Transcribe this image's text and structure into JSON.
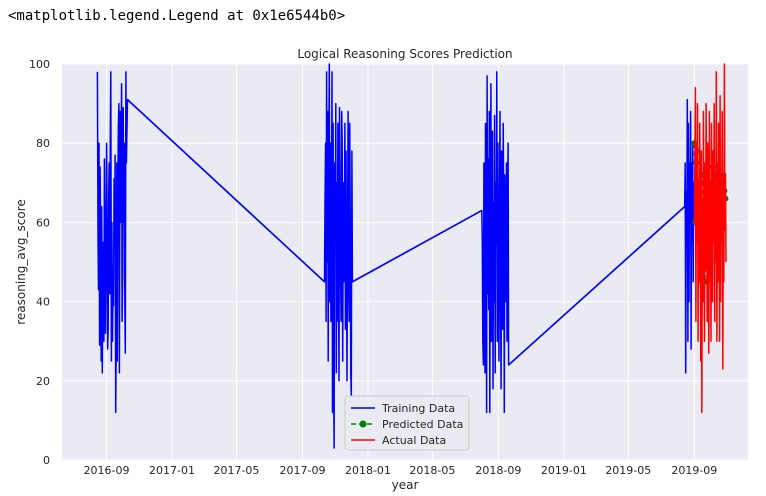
{
  "output_repr": "<matplotlib.legend.Legend at 0x1e6544b0>",
  "chart_data": {
    "type": "line",
    "title": "Logical Reasoning Scores Prediction",
    "xlabel": "year",
    "ylabel": "reasoning_avg_score",
    "ylim": [
      0,
      100
    ],
    "yticks": [
      0,
      20,
      40,
      60,
      80,
      100
    ],
    "xlim": [
      "2016-06-10",
      "2019-12-10"
    ],
    "xticks": [
      "2016-09",
      "2017-01",
      "2017-05",
      "2017-09",
      "2018-01",
      "2018-05",
      "2018-09",
      "2019-01",
      "2019-05",
      "2019-09"
    ],
    "grid": true,
    "legend_position": "lower-center",
    "series": [
      {
        "name": "Training Data",
        "color": "#0000ff",
        "style": "solid",
        "x": [
          "2016-08-15",
          "2016-08-16",
          "2016-08-17",
          "2016-08-18",
          "2016-08-19",
          "2016-08-20",
          "2016-08-21",
          "2016-08-22",
          "2016-08-23",
          "2016-08-24",
          "2016-08-25",
          "2016-08-26",
          "2016-08-27",
          "2016-08-28",
          "2016-08-29",
          "2016-08-30",
          "2016-08-31",
          "2016-09-01",
          "2016-09-02",
          "2016-09-03",
          "2016-09-04",
          "2016-09-05",
          "2016-09-06",
          "2016-09-07",
          "2016-09-08",
          "2016-09-09",
          "2016-09-10",
          "2016-09-11",
          "2016-09-12",
          "2016-09-13",
          "2016-09-14",
          "2016-09-15",
          "2016-09-16",
          "2016-09-17",
          "2016-09-18",
          "2016-09-19",
          "2016-09-20",
          "2016-09-21",
          "2016-09-22",
          "2016-09-23",
          "2016-09-24",
          "2016-09-25",
          "2016-09-26",
          "2016-09-27",
          "2016-09-28",
          "2016-09-29",
          "2016-09-30",
          "2016-10-01",
          "2016-10-02",
          "2016-10-03",
          "2016-10-04",
          "2016-10-05",
          "2016-10-06",
          "2016-10-07",
          "2016-10-08",
          "2016-10-10",
          "2017-10-12",
          "2017-10-13",
          "2017-10-14",
          "2017-10-15",
          "2017-10-16",
          "2017-10-17",
          "2017-10-18",
          "2017-10-19",
          "2017-10-20",
          "2017-10-21",
          "2017-10-22",
          "2017-10-23",
          "2017-10-24",
          "2017-10-25",
          "2017-10-26",
          "2017-10-27",
          "2017-10-28",
          "2017-10-29",
          "2017-10-30",
          "2017-10-31",
          "2017-11-01",
          "2017-11-02",
          "2017-11-03",
          "2017-11-04",
          "2017-11-05",
          "2017-11-06",
          "2017-11-07",
          "2017-11-08",
          "2017-11-09",
          "2017-11-10",
          "2017-11-11",
          "2017-11-12",
          "2017-11-13",
          "2017-11-14",
          "2017-11-15",
          "2017-11-16",
          "2017-11-17",
          "2017-11-18",
          "2017-11-19",
          "2017-11-20",
          "2017-11-21",
          "2017-11-22",
          "2017-11-23",
          "2017-11-24",
          "2017-11-25",
          "2017-11-26",
          "2017-11-27",
          "2017-11-28",
          "2017-11-29",
          "2017-11-30",
          "2017-12-01",
          "2017-12-02",
          "2017-12-03",
          "2018-08-01",
          "2018-08-02",
          "2018-08-03",
          "2018-08-04",
          "2018-08-05",
          "2018-08-06",
          "2018-08-07",
          "2018-08-08",
          "2018-08-09",
          "2018-08-10",
          "2018-08-11",
          "2018-08-12",
          "2018-08-13",
          "2018-08-14",
          "2018-08-15",
          "2018-08-16",
          "2018-08-17",
          "2018-08-18",
          "2018-08-19",
          "2018-08-20",
          "2018-08-21",
          "2018-08-22",
          "2018-08-23",
          "2018-08-24",
          "2018-08-25",
          "2018-08-26",
          "2018-08-27",
          "2018-08-28",
          "2018-08-29",
          "2018-08-30",
          "2018-08-31",
          "2018-09-01",
          "2018-09-02",
          "2018-09-03",
          "2018-09-04",
          "2018-09-05",
          "2018-09-06",
          "2018-09-07",
          "2018-09-08",
          "2018-09-09",
          "2018-09-10",
          "2018-09-11",
          "2018-09-12",
          "2018-09-13",
          "2018-09-14",
          "2018-09-15",
          "2018-09-16",
          "2018-09-17",
          "2018-09-18",
          "2018-09-19",
          "2018-09-20",
          "2019-08-14",
          "2019-08-15",
          "2019-08-16",
          "2019-08-17",
          "2019-08-18",
          "2019-08-19",
          "2019-08-20",
          "2019-08-21",
          "2019-08-22",
          "2019-08-23",
          "2019-08-24",
          "2019-08-25",
          "2019-08-26",
          "2019-08-27",
          "2019-08-28",
          "2019-08-29",
          "2019-08-30",
          "2019-08-31",
          "2019-09-01"
        ],
        "y": [
          98,
          57,
          43,
          80,
          29,
          74,
          58,
          25,
          64,
          22,
          45,
          55,
          30,
          76,
          60,
          32,
          48,
          80,
          60,
          28,
          33,
          68,
          75,
          42,
          82,
          98,
          25,
          60,
          30,
          45,
          39,
          71,
          57,
          77,
          12,
          30,
          75,
          25,
          68,
          85,
          90,
          22,
          88,
          60,
          75,
          95,
          35,
          47,
          89,
          60,
          80,
          40,
          27,
          98,
          75,
          91,
          45,
          65,
          80,
          35,
          98,
          50,
          88,
          25,
          75,
          100,
          40,
          80,
          35,
          60,
          98,
          12,
          85,
          22,
          3,
          75,
          55,
          90,
          22,
          70,
          35,
          85,
          50,
          20,
          89,
          65,
          47,
          35,
          88,
          80,
          25,
          70,
          45,
          60,
          85,
          33,
          78,
          48,
          20,
          60,
          88,
          45,
          35,
          85,
          62,
          22,
          16,
          78,
          45,
          63,
          55,
          30,
          24,
          75,
          48,
          22,
          85,
          60,
          12,
          97,
          42,
          76,
          38,
          88,
          12,
          60,
          95,
          30,
          50,
          83,
          18,
          65,
          40,
          87,
          22,
          70,
          55,
          98,
          30,
          80,
          45,
          25,
          62,
          88,
          42,
          18,
          78,
          55,
          33,
          85,
          60,
          12,
          72,
          48,
          40,
          75,
          30,
          63,
          80,
          24,
          64,
          75,
          22,
          68,
          55,
          91,
          30,
          85,
          40,
          75,
          62,
          88,
          28,
          75,
          55,
          80,
          45,
          70,
          60
        ],
        "bridges": [
          [
            "2016-10-10",
            91,
            "2017-10-12",
            45
          ],
          [
            "2017-12-03",
            45,
            "2018-08-01",
            63
          ],
          [
            "2018-09-20",
            24,
            "2019-08-14",
            64
          ]
        ]
      },
      {
        "name": "Predicted Data",
        "color": "#008000",
        "style": "dashed-markers",
        "x": [
          "2019-09-01",
          "2019-09-03",
          "2019-09-05",
          "2019-09-07",
          "2019-09-09",
          "2019-09-11",
          "2019-09-13",
          "2019-09-15",
          "2019-09-17",
          "2019-09-19",
          "2019-09-21",
          "2019-09-23",
          "2019-09-25",
          "2019-09-27",
          "2019-09-29",
          "2019-10-01",
          "2019-10-03",
          "2019-10-05",
          "2019-10-07",
          "2019-10-09",
          "2019-10-11",
          "2019-10-13",
          "2019-10-15",
          "2019-10-17",
          "2019-10-19",
          "2019-10-21",
          "2019-10-23",
          "2019-10-25",
          "2019-10-27",
          "2019-10-29"
        ],
        "y": [
          80,
          60,
          75,
          78,
          62,
          58,
          70,
          48,
          72,
          65,
          45,
          68,
          62,
          74,
          55,
          66,
          70,
          60,
          64,
          72,
          58,
          68,
          74,
          62,
          66,
          70,
          64,
          72,
          68,
          66
        ]
      },
      {
        "name": "Actual Data",
        "color": "#ff0000",
        "style": "solid",
        "x": [
          "2019-09-01",
          "2019-09-02",
          "2019-09-03",
          "2019-09-04",
          "2019-09-05",
          "2019-09-06",
          "2019-09-07",
          "2019-09-08",
          "2019-09-09",
          "2019-09-10",
          "2019-09-11",
          "2019-09-12",
          "2019-09-13",
          "2019-09-14",
          "2019-09-15",
          "2019-09-16",
          "2019-09-17",
          "2019-09-18",
          "2019-09-19",
          "2019-09-20",
          "2019-09-21",
          "2019-09-22",
          "2019-09-23",
          "2019-09-24",
          "2019-09-25",
          "2019-09-26",
          "2019-09-27",
          "2019-09-28",
          "2019-09-29",
          "2019-09-30",
          "2019-10-01",
          "2019-10-02",
          "2019-10-03",
          "2019-10-04",
          "2019-10-05",
          "2019-10-06",
          "2019-10-07",
          "2019-10-08",
          "2019-10-09",
          "2019-10-10",
          "2019-10-11",
          "2019-10-12",
          "2019-10-13",
          "2019-10-14",
          "2019-10-15",
          "2019-10-16",
          "2019-10-17",
          "2019-10-18",
          "2019-10-19",
          "2019-10-20",
          "2019-10-21",
          "2019-10-22",
          "2019-10-23",
          "2019-10-24",
          "2019-10-25",
          "2019-10-26",
          "2019-10-27",
          "2019-10-28",
          "2019-10-29",
          "2019-10-30"
        ],
        "y": [
          60,
          75,
          94,
          35,
          80,
          55,
          90,
          30,
          70,
          45,
          85,
          60,
          25,
          78,
          12,
          65,
          40,
          88,
          55,
          30,
          75,
          48,
          90,
          62,
          35,
          80,
          52,
          27,
          88,
          45,
          70,
          30,
          85,
          60,
          40,
          78,
          55,
          90,
          35,
          68,
          50,
          98,
          30,
          75,
          45,
          85,
          60,
          30,
          92,
          40,
          70,
          55,
          88,
          23,
          65,
          45,
          100,
          58,
          72,
          50
        ]
      }
    ]
  }
}
